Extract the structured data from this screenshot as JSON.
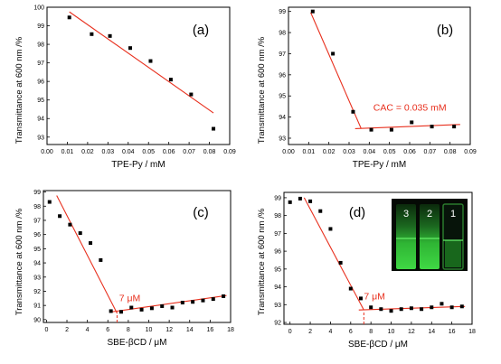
{
  "colors": {
    "fit_line": "#e8301e",
    "marker": "#000000",
    "axis": "#000000",
    "photo_glow": "#35c93a"
  },
  "chart_data": [
    {
      "panel": "(a)",
      "type": "scatter",
      "xlabel": "TPE-Py / mM",
      "ylabel": "Transmittance at 600 nm /%",
      "xlim": [
        0.0,
        0.09
      ],
      "ylim": [
        92.6,
        100.0
      ],
      "xticks": [
        0.0,
        0.01,
        0.02,
        0.03,
        0.04,
        0.05,
        0.06,
        0.07,
        0.08,
        0.09
      ],
      "xtick_labels": [
        "0.00",
        "0.01",
        "0.02",
        "0.03",
        "0.04",
        "0.05",
        "0.06",
        "0.07",
        "0.08",
        "0.09"
      ],
      "yticks": [
        93,
        94,
        95,
        96,
        97,
        98,
        99,
        100
      ],
      "ytick_labels": [
        "93",
        "94",
        "95",
        "96",
        "97",
        "98",
        "99",
        "100"
      ],
      "x": [
        0.011,
        0.022,
        0.031,
        0.041,
        0.051,
        0.061,
        0.071,
        0.082
      ],
      "y": [
        99.45,
        98.55,
        98.45,
        97.8,
        97.1,
        96.1,
        95.3,
        93.45
      ],
      "fit_lines": [
        {
          "x": [
            0.011,
            0.082
          ],
          "y": [
            99.75,
            94.3
          ]
        }
      ],
      "annotations": []
    },
    {
      "panel": "(b)",
      "type": "scatter",
      "xlabel": "TPE-Py / mM",
      "ylabel": "Transmittance at 600 nm /%",
      "xlim": [
        0.0,
        0.09
      ],
      "ylim": [
        92.7,
        99.2
      ],
      "xticks": [
        0.0,
        0.01,
        0.02,
        0.03,
        0.04,
        0.05,
        0.06,
        0.07,
        0.08,
        0.09
      ],
      "xtick_labels": [
        "0.00",
        "0.01",
        "0.02",
        "0.03",
        "0.04",
        "0.05",
        "0.06",
        "0.07",
        "0.08",
        "0.09"
      ],
      "yticks": [
        93,
        94,
        95,
        96,
        97,
        98,
        99
      ],
      "ytick_labels": [
        "93",
        "94",
        "95",
        "96",
        "97",
        "98",
        "99"
      ],
      "x": [
        0.012,
        0.022,
        0.032,
        0.041,
        0.051,
        0.061,
        0.071,
        0.082
      ],
      "y": [
        99.0,
        97.0,
        94.25,
        93.4,
        93.4,
        93.75,
        93.55,
        93.55
      ],
      "fit_lines": [
        {
          "x": [
            0.011,
            0.036
          ],
          "y": [
            98.95,
            93.45
          ]
        },
        {
          "x": [
            0.033,
            0.085
          ],
          "y": [
            93.45,
            93.65
          ]
        }
      ],
      "annotations": [
        {
          "text": "CAC = 0.035 mM",
          "x": 0.042,
          "y": 94.3
        }
      ]
    },
    {
      "panel": "(c)",
      "type": "scatter",
      "xlabel": "SBE-βCD / μM",
      "ylabel": "Transmittance at 600 nm /%",
      "xlim": [
        -0.3,
        18.0
      ],
      "ylim": [
        89.8,
        99.1
      ],
      "xticks": [
        0,
        2,
        4,
        6,
        8,
        10,
        12,
        14,
        16,
        18
      ],
      "xtick_labels": [
        "0",
        "2",
        "4",
        "6",
        "8",
        "10",
        "12",
        "14",
        "16",
        "18"
      ],
      "yticks": [
        90,
        91,
        92,
        93,
        94,
        95,
        96,
        97,
        98,
        99
      ],
      "ytick_labels": [
        "90",
        "91",
        "92",
        "93",
        "94",
        "95",
        "96",
        "97",
        "98",
        "99"
      ],
      "x": [
        0.3,
        1.3,
        2.3,
        3.3,
        4.3,
        5.3,
        6.3,
        7.3,
        8.3,
        9.3,
        10.3,
        11.3,
        12.3,
        13.3,
        14.3,
        15.3,
        16.3,
        17.3
      ],
      "y": [
        98.3,
        97.3,
        96.7,
        96.1,
        95.4,
        94.2,
        90.6,
        90.55,
        90.85,
        90.7,
        90.8,
        90.95,
        90.85,
        91.2,
        91.25,
        91.35,
        91.45,
        91.65
      ],
      "fit_lines": [
        {
          "x": [
            1.0,
            6.9
          ],
          "y": [
            98.75,
            90.45
          ]
        },
        {
          "x": [
            6.4,
            17.6
          ],
          "y": [
            90.55,
            91.7
          ]
        }
      ],
      "marker_lines": [
        {
          "x": 6.9,
          "y": [
            89.8,
            90.5
          ]
        }
      ],
      "annotations": [
        {
          "text": "7 μM",
          "x": 7.1,
          "y": 91.3
        }
      ]
    },
    {
      "panel": "(d)",
      "type": "scatter",
      "xlabel": "SBE-βCD / μM",
      "ylabel": "Transmittance at 600 nm /%",
      "xlim": [
        -0.6,
        18.0
      ],
      "ylim": [
        91.9,
        99.3
      ],
      "xticks": [
        0,
        2,
        4,
        6,
        8,
        10,
        12,
        14,
        16,
        18
      ],
      "xtick_labels": [
        "0",
        "2",
        "4",
        "6",
        "8",
        "10",
        "12",
        "14",
        "16",
        "18"
      ],
      "yticks": [
        92,
        93,
        94,
        95,
        96,
        97,
        98,
        99
      ],
      "ytick_labels": [
        "92",
        "93",
        "94",
        "95",
        "96",
        "97",
        "98",
        "99"
      ],
      "x": [
        0.0,
        1.0,
        2.0,
        3.0,
        4.0,
        5.0,
        6.0,
        7.0,
        8.0,
        9.0,
        10.0,
        11.0,
        12.0,
        13.0,
        14.0,
        15.0,
        16.0,
        17.0
      ],
      "y": [
        98.75,
        98.95,
        98.8,
        98.25,
        97.25,
        95.35,
        93.9,
        93.35,
        92.85,
        92.75,
        92.65,
        92.75,
        92.8,
        92.75,
        92.85,
        93.05,
        92.85,
        92.9
      ],
      "fit_lines": [
        {
          "x": [
            1.4,
            7.3
          ],
          "y": [
            99.0,
            92.7
          ]
        },
        {
          "x": [
            6.8,
            17.3
          ],
          "y": [
            92.7,
            92.9
          ]
        }
      ],
      "marker_lines": [
        {
          "x": 7.3,
          "y": [
            91.9,
            92.65
          ]
        }
      ],
      "annotations": [
        {
          "text": "7 μM",
          "x": 7.3,
          "y": 93.3
        }
      ],
      "inset_photo": {
        "labels": [
          "3",
          "2",
          "1"
        ]
      }
    }
  ]
}
